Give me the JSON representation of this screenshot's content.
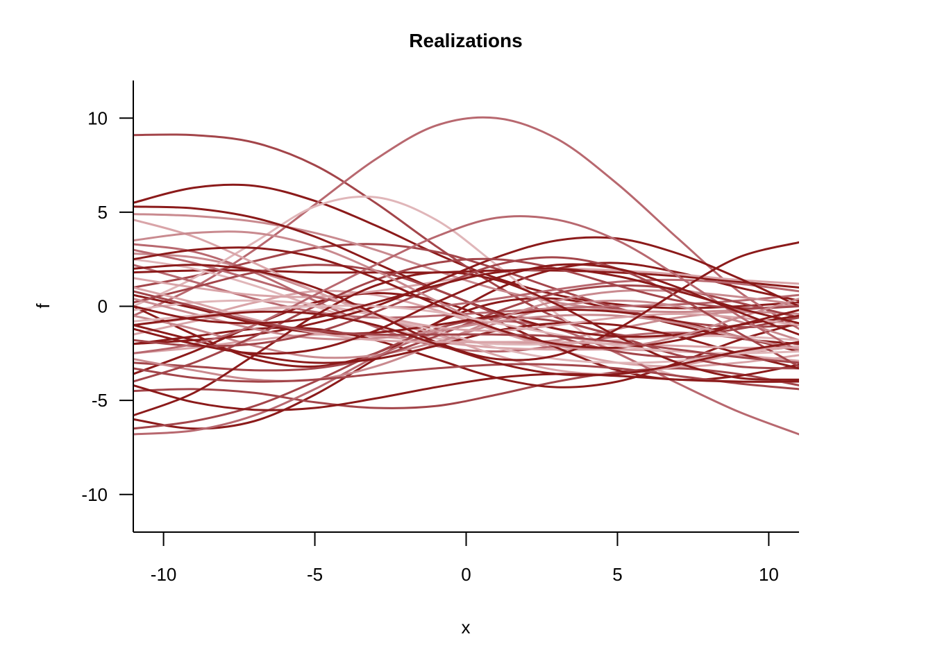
{
  "chart_data": {
    "type": "line",
    "title": "Realizations",
    "xlabel": "x",
    "ylabel": "f",
    "xlim": [
      -11,
      11
    ],
    "ylim": [
      -12,
      12
    ],
    "x_ticks": [
      -10,
      -5,
      0,
      5,
      10
    ],
    "y_ticks": [
      -10,
      -5,
      0,
      5,
      10
    ],
    "x_tick_labels": [
      "-10",
      "-5",
      "0",
      "5",
      "10"
    ],
    "y_tick_labels": [
      "-10",
      "-5",
      "0",
      "5",
      "10"
    ],
    "grid": false,
    "legend": "none",
    "x": [
      -11,
      -9,
      -7,
      -5,
      -3,
      -1,
      1,
      3,
      5,
      7,
      9,
      11
    ],
    "series": [
      {
        "color": "#8b1a1a",
        "values": [
          5.5,
          6.3,
          6.4,
          5.6,
          4.3,
          2.8,
          1.5,
          0.6,
          0.1,
          -0.1,
          0.0,
          0.2
        ]
      },
      {
        "color": "#a3454a",
        "values": [
          9.1,
          9.1,
          8.7,
          7.5,
          5.5,
          3.2,
          1.1,
          -0.6,
          -1.5,
          -1.6,
          -1.2,
          -0.6
        ]
      },
      {
        "color": "#b8686f",
        "values": [
          -0.5,
          1.0,
          3.0,
          5.4,
          7.8,
          9.6,
          10.0,
          8.9,
          6.5,
          3.6,
          0.8,
          -1.2
        ]
      },
      {
        "color": "#d9a4a8",
        "values": [
          -1.0,
          -0.6,
          0.2,
          0.8,
          0.6,
          -0.2,
          -1.3,
          -2.3,
          -3.0,
          -3.2,
          -3.0,
          -2.6
        ]
      },
      {
        "color": "#8b1a1a",
        "values": [
          -6.0,
          -6.5,
          -6.1,
          -4.7,
          -2.8,
          -0.9,
          0.2,
          0.4,
          -0.2,
          -1.0,
          -1.7,
          -2.0
        ]
      },
      {
        "color": "#a3454a",
        "values": [
          -4.5,
          -4.4,
          -4.6,
          -5.1,
          -5.4,
          -5.3,
          -4.7,
          -4.0,
          -3.5,
          -3.3,
          -3.6,
          -4.2
        ]
      },
      {
        "color": "#c98a8f",
        "values": [
          2.8,
          2.6,
          1.9,
          0.8,
          -0.5,
          -1.5,
          -2.0,
          -1.8,
          -1.2,
          -0.6,
          -0.3,
          -0.4
        ]
      },
      {
        "color": "#8b1a1a",
        "values": [
          0.0,
          -1.5,
          -2.8,
          -3.2,
          -2.5,
          -0.9,
          0.9,
          2.0,
          2.3,
          1.8,
          1.0,
          0.3
        ]
      },
      {
        "color": "#b8686f",
        "values": [
          3.3,
          2.9,
          1.8,
          0.3,
          -1.1,
          -2.1,
          -2.4,
          -2.1,
          -1.6,
          -1.4,
          -1.7,
          -2.3
        ]
      },
      {
        "color": "#d9a4a8",
        "values": [
          -2.5,
          -2.2,
          -1.8,
          -1.5,
          -1.6,
          -1.9,
          -2.2,
          -2.3,
          -2.3,
          -2.4,
          -2.6,
          -2.9
        ]
      },
      {
        "color": "#a3454a",
        "values": [
          1.0,
          1.6,
          2.4,
          3.1,
          3.3,
          2.9,
          2.0,
          0.9,
          -0.1,
          -0.8,
          -1.1,
          -1.0
        ]
      },
      {
        "color": "#8b1a1a",
        "values": [
          -2.0,
          -1.6,
          -1.2,
          -1.2,
          -1.8,
          -2.8,
          -3.8,
          -4.3,
          -4.0,
          -3.0,
          -1.8,
          -0.9
        ]
      },
      {
        "color": "#c98a8f",
        "values": [
          4.9,
          4.8,
          4.5,
          3.9,
          3.0,
          1.9,
          0.9,
          0.2,
          -0.2,
          -0.3,
          -0.2,
          0.1
        ]
      },
      {
        "color": "#e0b6b9",
        "values": [
          0.0,
          1.5,
          3.4,
          5.3,
          5.8,
          4.6,
          2.2,
          -0.4,
          -2.5,
          -3.7,
          -4.0,
          -4.0
        ]
      },
      {
        "color": "#8b1a1a",
        "values": [
          -3.6,
          -2.4,
          -1.0,
          0.2,
          0.7,
          0.3,
          -0.8,
          -2.2,
          -3.4,
          -3.9,
          -3.7,
          -3.1
        ]
      },
      {
        "color": "#b8686f",
        "values": [
          2.2,
          1.3,
          0.4,
          -0.3,
          -0.6,
          -0.5,
          -0.3,
          -0.1,
          0.0,
          0.1,
          0.3,
          0.6
        ]
      },
      {
        "color": "#d9a4a8",
        "values": [
          -1.5,
          -0.8,
          -0.2,
          0.0,
          -0.5,
          -1.5,
          -2.6,
          -3.4,
          -3.6,
          -3.2,
          -2.5,
          -1.9
        ]
      },
      {
        "color": "#a3454a",
        "values": [
          -6.5,
          -6.1,
          -5.3,
          -4.0,
          -2.5,
          -1.2,
          -0.6,
          -0.8,
          -1.6,
          -2.6,
          -3.2,
          -3.3
        ]
      },
      {
        "color": "#8b1a1a",
        "values": [
          1.8,
          1.9,
          1.9,
          1.8,
          1.8,
          1.8,
          1.9,
          1.9,
          1.8,
          1.6,
          1.3,
          1.0
        ]
      },
      {
        "color": "#c98a8f",
        "values": [
          -0.5,
          -1.2,
          -2.1,
          -2.7,
          -2.6,
          -1.9,
          -0.9,
          0.0,
          0.3,
          0.0,
          -0.8,
          -1.8
        ]
      },
      {
        "color": "#e0b6b9",
        "values": [
          2.5,
          2.0,
          1.1,
          0.0,
          -1.0,
          -1.7,
          -2.0,
          -2.0,
          -1.8,
          -1.6,
          -1.6,
          -1.8
        ]
      },
      {
        "color": "#a3454a",
        "values": [
          -3.0,
          -3.2,
          -3.4,
          -3.3,
          -2.7,
          -1.6,
          -0.3,
          0.7,
          1.1,
          0.9,
          0.2,
          -0.6
        ]
      },
      {
        "color": "#8b1a1a",
        "values": [
          0.6,
          -0.1,
          -0.9,
          -1.4,
          -1.4,
          -1.0,
          -0.5,
          -0.2,
          -0.3,
          -0.8,
          -1.6,
          -2.4
        ]
      },
      {
        "color": "#b8686f",
        "values": [
          -6.8,
          -6.6,
          -5.8,
          -4.4,
          -2.7,
          -1.4,
          -0.8,
          -1.2,
          -2.5,
          -4.1,
          -5.6,
          -6.8
        ]
      },
      {
        "color": "#d9a4a8",
        "values": [
          1.5,
          1.0,
          0.6,
          0.5,
          0.8,
          1.3,
          1.8,
          2.0,
          1.9,
          1.7,
          1.4,
          1.2
        ]
      },
      {
        "color": "#8b1a1a",
        "values": [
          5.3,
          5.2,
          4.7,
          3.7,
          2.3,
          0.9,
          -0.3,
          -1.2,
          -1.6,
          -1.5,
          -1.0,
          -0.5
        ]
      },
      {
        "color": "#c98a8f",
        "values": [
          -2.8,
          -3.4,
          -3.9,
          -3.9,
          -3.2,
          -2.0,
          -0.7,
          0.3,
          0.8,
          0.8,
          0.5,
          0.1
        ]
      },
      {
        "color": "#a3454a",
        "values": [
          0.2,
          1.0,
          1.8,
          2.2,
          1.9,
          0.9,
          -0.4,
          -1.6,
          -2.4,
          -2.7,
          -2.5,
          -2.1
        ]
      },
      {
        "color": "#8b1a1a",
        "values": [
          -1.0,
          -1.8,
          -2.6,
          -3.0,
          -2.8,
          -2.1,
          -1.3,
          -0.9,
          -1.0,
          -1.6,
          -2.5,
          -3.3
        ]
      },
      {
        "color": "#e0b6b9",
        "values": [
          -0.2,
          0.2,
          0.3,
          0.1,
          -0.5,
          -1.3,
          -2.2,
          -2.8,
          -3.0,
          -2.9,
          -2.5,
          -2.1
        ]
      },
      {
        "color": "#b8686f",
        "values": [
          3.0,
          2.3,
          1.4,
          0.5,
          0.0,
          0.0,
          0.4,
          0.9,
          1.3,
          1.4,
          1.2,
          0.8
        ]
      },
      {
        "color": "#8b1a1a",
        "values": [
          -2.0,
          -1.8,
          -1.5,
          -0.9,
          0.0,
          1.3,
          2.6,
          3.5,
          3.6,
          2.8,
          1.5,
          0.0
        ]
      },
      {
        "color": "#a3454a",
        "values": [
          -4.0,
          -3.0,
          -1.6,
          0.0,
          1.4,
          2.3,
          2.5,
          2.0,
          1.1,
          0.3,
          -0.1,
          0.0
        ]
      },
      {
        "color": "#c98a8f",
        "values": [
          0.4,
          -0.4,
          -1.2,
          -1.7,
          -1.7,
          -1.3,
          -0.8,
          -0.5,
          -0.5,
          -0.9,
          -1.6,
          -2.3
        ]
      },
      {
        "color": "#d9a4a8",
        "values": [
          4.6,
          3.7,
          2.3,
          0.8,
          -0.4,
          -1.1,
          -1.3,
          -1.0,
          -0.6,
          -0.4,
          -0.6,
          -1.0
        ]
      },
      {
        "color": "#8b1a1a",
        "values": [
          -5.8,
          -4.6,
          -2.6,
          -0.5,
          1.1,
          1.8,
          1.4,
          0.1,
          -1.6,
          -3.0,
          -3.8,
          -3.9
        ]
      },
      {
        "color": "#8b1a1a",
        "values": [
          2.0,
          2.2,
          1.9,
          1.0,
          -0.4,
          -1.9,
          -2.8,
          -2.6,
          -1.2,
          0.8,
          2.6,
          3.4
        ]
      },
      {
        "color": "#a3454a",
        "values": [
          -1.8,
          -2.1,
          -2.0,
          -1.4,
          -0.3,
          1.0,
          2.2,
          2.6,
          2.0,
          0.5,
          -1.4,
          -3.2
        ]
      },
      {
        "color": "#c98a8f",
        "values": [
          3.5,
          3.9,
          3.9,
          3.2,
          1.9,
          0.3,
          -1.2,
          -2.1,
          -2.2,
          -1.6,
          -0.6,
          0.4
        ]
      },
      {
        "color": "#b8686f",
        "values": [
          -2.5,
          -2.0,
          -1.0,
          0.6,
          2.2,
          3.7,
          4.7,
          4.6,
          3.5,
          1.6,
          -0.5,
          -2.4
        ]
      },
      {
        "color": "#d9a4a8",
        "values": [
          1.0,
          0.2,
          -0.7,
          -1.4,
          -1.8,
          -1.9,
          -1.9,
          -1.9,
          -2.0,
          -2.1,
          -2.2,
          -2.2
        ]
      },
      {
        "color": "#a3454a",
        "values": [
          -3.3,
          -3.8,
          -4.0,
          -3.9,
          -3.6,
          -3.3,
          -3.1,
          -3.1,
          -3.3,
          -3.7,
          -4.1,
          -4.4
        ]
      },
      {
        "color": "#8b1a1a",
        "values": [
          2.5,
          3.0,
          3.1,
          2.6,
          1.5,
          0.1,
          -1.2,
          -2.0,
          -2.2,
          -1.8,
          -1.0,
          -0.2
        ]
      },
      {
        "color": "#e0b6b9",
        "values": [
          -0.8,
          -0.5,
          -0.2,
          0.0,
          0.0,
          -0.3,
          -0.9,
          -1.5,
          -2.1,
          -2.4,
          -2.5,
          -2.4
        ]
      },
      {
        "color": "#8b1a1a",
        "values": [
          -4.2,
          -5.1,
          -5.5,
          -5.4,
          -4.9,
          -4.3,
          -3.8,
          -3.6,
          -3.7,
          -3.9,
          -4.0,
          -4.0
        ]
      },
      {
        "color": "#8b1a1a",
        "values": [
          -1.2,
          -2.0,
          -2.5,
          -2.3,
          -1.3,
          0.2,
          1.5,
          2.2,
          2.0,
          1.0,
          -0.3,
          -1.5
        ]
      },
      {
        "color": "#a3454a",
        "values": [
          0.8,
          0.0,
          -0.8,
          -1.3,
          -1.5,
          -1.5,
          -1.5,
          -1.6,
          -1.9,
          -2.3,
          -2.7,
          -3.0
        ]
      },
      {
        "color": "#8b1a1a",
        "values": [
          0.0,
          -0.7,
          -0.9,
          -0.6,
          0.2,
          1.1,
          1.8,
          2.0,
          1.6,
          0.8,
          -0.1,
          -0.9
        ]
      },
      {
        "color": "#8b1a1a",
        "values": [
          -1.0,
          -0.6,
          -0.3,
          -0.4,
          -1.0,
          -2.0,
          -3.0,
          -3.6,
          -3.6,
          -3.1,
          -2.4,
          -1.9
        ]
      }
    ]
  }
}
